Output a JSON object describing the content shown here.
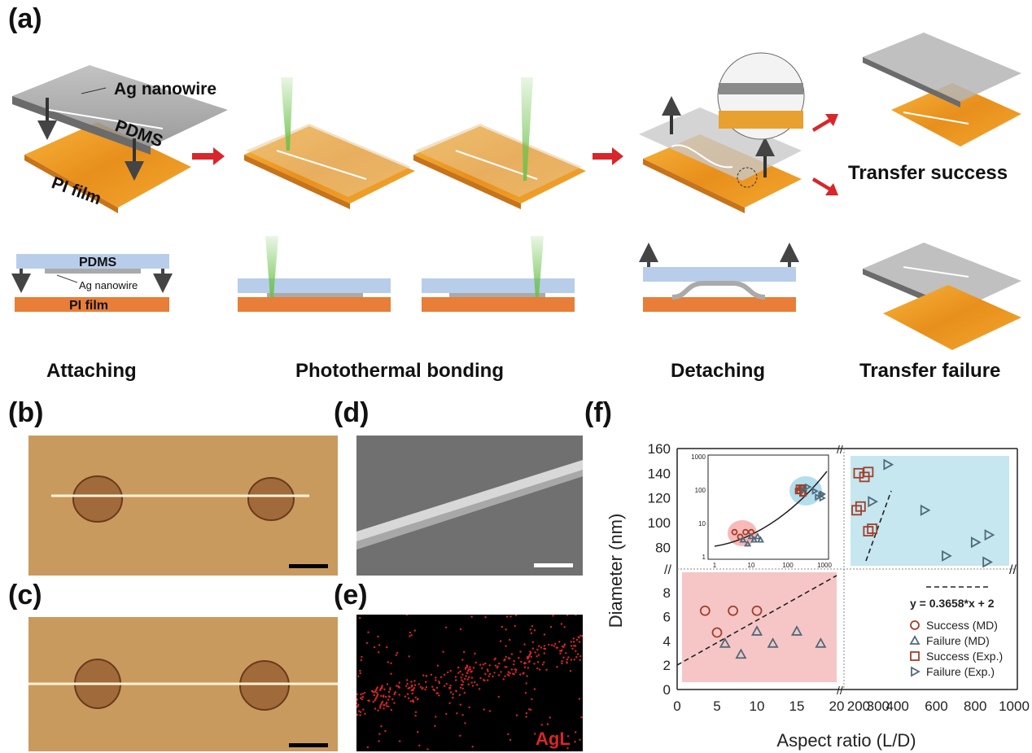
{
  "panels": {
    "a": "(a)",
    "b": "(b)",
    "c": "(c)",
    "d": "(d)",
    "e": "(e)",
    "f": "(f)"
  },
  "schematic": {
    "ag_nanowire": "Ag nanowire",
    "pdms": "PDMS",
    "pi_film": "PI film",
    "xs_pdms": "PDMS",
    "xs_ag_nanowire": "Ag nanowire",
    "xs_pi_film": "PI film",
    "transfer_success": "Transfer success",
    "transfer_failure": "Transfer failure",
    "stages": [
      "Attaching",
      "Photothermal bonding",
      "Detaching",
      "Transfer failure"
    ]
  },
  "eds_label": "AgL",
  "colors": {
    "pi": "#e8a030",
    "pdms_xs": "#b8cdea",
    "pi_xs": "#e87e38",
    "arrow": "#d8262b",
    "laser": "#6cc24a",
    "success_region": "#c6e6f0",
    "failure_region": "#f6c6c6"
  },
  "chart_data": {
    "type": "scatter",
    "ylabel": "Diameter (nm)",
    "xlabel": "Aspect ratio (L/D)",
    "x_ticks_left": [
      "0",
      "5",
      "10",
      "15",
      "20"
    ],
    "x_ticks_right": [
      "200",
      "300",
      "400",
      "600",
      "800",
      "1000"
    ],
    "y_ticks_upper": [
      "80",
      "100",
      "120",
      "140",
      "160"
    ],
    "y_ticks_lower": [
      "0",
      "2",
      "4",
      "6",
      "8"
    ],
    "fit_label": "y = 0.3658*x + 2",
    "series": [
      {
        "name": "Success (MD)",
        "marker": "circle",
        "color": "#a0402a",
        "points": [
          [
            3.5,
            6.5
          ],
          [
            5,
            4.7
          ],
          [
            7,
            6.5
          ],
          [
            10,
            6.5
          ]
        ]
      },
      {
        "name": "Failure (MD)",
        "marker": "triangle-up",
        "color": "#50697a",
        "points": [
          [
            6,
            3.8
          ],
          [
            8,
            2.9
          ],
          [
            10,
            4.8
          ],
          [
            12,
            3.8
          ],
          [
            15,
            4.8
          ],
          [
            18,
            3.8
          ]
        ]
      },
      {
        "name": "Success (Exp.)",
        "marker": "square",
        "color": "#a0402a",
        "points": [
          [
            200,
            140
          ],
          [
            230,
            137
          ],
          [
            250,
            141
          ],
          [
            210,
            113
          ],
          [
            190,
            110
          ],
          [
            270,
            95
          ],
          [
            250,
            93
          ]
        ]
      },
      {
        "name": "Failure (Exp.)",
        "marker": "triangle-right",
        "color": "#50697a",
        "points": [
          [
            350,
            147
          ],
          [
            270,
            117
          ],
          [
            540,
            110
          ],
          [
            650,
            73
          ],
          [
            800,
            84
          ],
          [
            870,
            90
          ],
          [
            860,
            68
          ]
        ]
      }
    ],
    "inset": {
      "x_ticks": [
        "1",
        "10",
        "100",
        "1000"
      ],
      "y_ticks": [
        "1",
        "10",
        "100",
        "1000"
      ]
    }
  }
}
